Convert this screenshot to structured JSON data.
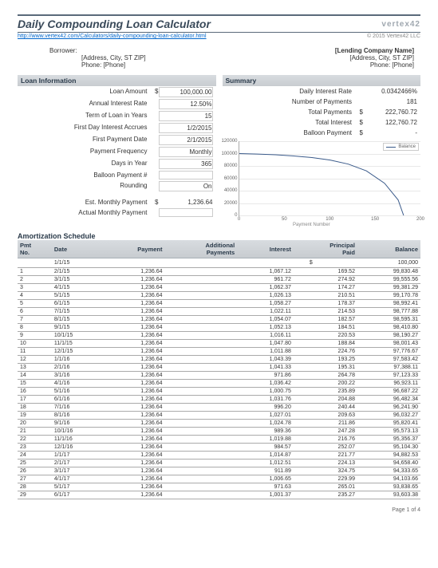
{
  "header": {
    "title": "Daily Compounding Loan Calculator",
    "logo": "vertex42",
    "url": "http://www.vertex42.com/Calculators/daily-compounding-loan-calculator.html",
    "copyright": "© 2015 Vertex42 LLC"
  },
  "party": {
    "borrower_label": "Borrower:",
    "borrower_addr": "[Address, City, ST  ZIP]",
    "borrower_phone": "Phone: [Phone]",
    "lender_name": "[Lending Company Name]",
    "lender_addr": "[Address, City, ST  ZIP]",
    "lender_phone": "Phone: [Phone]"
  },
  "loan": {
    "section": "Loan Information",
    "rows": [
      {
        "k": "Loan Amount",
        "c": "$",
        "v": "100,000.00",
        "boxed": true
      },
      {
        "k": "Annual Interest Rate",
        "c": "",
        "v": "12.50%",
        "boxed": true
      },
      {
        "k": "Term of Loan in Years",
        "c": "",
        "v": "15",
        "boxed": true
      },
      {
        "k": "First Day Interest Accrues",
        "c": "",
        "v": "1/2/2015",
        "boxed": true
      },
      {
        "k": "First Payment Date",
        "c": "",
        "v": "2/1/2015",
        "boxed": true
      },
      {
        "k": "Payment Frequency",
        "c": "",
        "v": "Monthly",
        "boxed": true
      },
      {
        "k": "Days in Year",
        "c": "",
        "v": "365",
        "boxed": true
      },
      {
        "k": "Balloon Payment #",
        "c": "",
        "v": "",
        "boxed": true
      },
      {
        "k": "Rounding",
        "c": "",
        "v": "On",
        "boxed": true
      }
    ],
    "est_label": "Est. Monthly Payment",
    "est_c": "$",
    "est_v": "1,236.64",
    "act_label": "Actual Monthly Payment",
    "act_v": ""
  },
  "summary": {
    "section": "Summary",
    "rows": [
      {
        "k": "Daily Interest Rate",
        "c": "",
        "v": "0.0342466%"
      },
      {
        "k": "Number of Payments",
        "c": "",
        "v": "181"
      },
      {
        "k": "Total Payments",
        "c": "$",
        "v": "222,760.72"
      },
      {
        "k": "Total Interest",
        "c": "$",
        "v": "122,760.72"
      },
      {
        "k": "Balloon Payment",
        "c": "$",
        "v": "-"
      }
    ]
  },
  "chart": {
    "legend": "Balance",
    "yticks": [
      {
        "v": 0,
        "l": "0"
      },
      {
        "v": 20000,
        "l": "20000"
      },
      {
        "v": 40000,
        "l": "40000"
      },
      {
        "v": 60000,
        "l": "60000"
      },
      {
        "v": 80000,
        "l": "80000"
      },
      {
        "v": 100000,
        "l": "100000"
      },
      {
        "v": 120000,
        "l": "120000"
      }
    ],
    "ymax": 120000,
    "xticks": [
      {
        "v": 0,
        "l": "0"
      },
      {
        "v": 50,
        "l": "50"
      },
      {
        "v": 100,
        "l": "100"
      },
      {
        "v": 150,
        "l": "150"
      },
      {
        "v": 200,
        "l": "200"
      }
    ],
    "xmax": 200,
    "xtitle": "Payment Number",
    "line_color": "#3a5a8a",
    "points": [
      [
        0,
        100000
      ],
      [
        20,
        99200
      ],
      [
        40,
        98000
      ],
      [
        60,
        96200
      ],
      [
        80,
        93500
      ],
      [
        100,
        89500
      ],
      [
        120,
        83000
      ],
      [
        140,
        72000
      ],
      [
        160,
        52000
      ],
      [
        175,
        25000
      ],
      [
        181,
        0
      ]
    ]
  },
  "amort": {
    "title": "Amortization Schedule",
    "cols": [
      "Pmt\nNo.",
      "Date",
      "Payment",
      "Additional\nPayments",
      "Interest",
      "Principal\nPaid",
      "Balance"
    ],
    "first": {
      "date": "1/1/15",
      "curr": "$",
      "balance": "100,000"
    },
    "rows": [
      [
        "1",
        "2/1/15",
        "1,236.64",
        "",
        "1,067.12",
        "169.52",
        "99,830.48"
      ],
      [
        "2",
        "3/1/15",
        "1,236.64",
        "",
        "961.72",
        "274.92",
        "99,555.56"
      ],
      [
        "3",
        "4/1/15",
        "1,236.64",
        "",
        "1,062.37",
        "174.27",
        "99,381.29"
      ],
      [
        "4",
        "5/1/15",
        "1,236.64",
        "",
        "1,026.13",
        "210.51",
        "99,170.78"
      ],
      [
        "5",
        "6/1/15",
        "1,236.64",
        "",
        "1,058.27",
        "178.37",
        "98,992.41"
      ],
      [
        "6",
        "7/1/15",
        "1,236.64",
        "",
        "1,022.11",
        "214.53",
        "98,777.88"
      ],
      [
        "7",
        "8/1/15",
        "1,236.64",
        "",
        "1,054.07",
        "182.57",
        "98,595.31"
      ],
      [
        "8",
        "9/1/15",
        "1,236.64",
        "",
        "1,052.13",
        "184.51",
        "98,410.80"
      ],
      [
        "9",
        "10/1/15",
        "1,236.64",
        "",
        "1,016.11",
        "220.53",
        "98,190.27"
      ],
      [
        "10",
        "11/1/15",
        "1,236.64",
        "",
        "1,047.80",
        "188.84",
        "98,001.43"
      ],
      [
        "11",
        "12/1/15",
        "1,236.64",
        "",
        "1,011.88",
        "224.76",
        "97,776.67"
      ],
      [
        "12",
        "1/1/16",
        "1,236.64",
        "",
        "1,043.39",
        "193.25",
        "97,583.42"
      ],
      [
        "13",
        "2/1/16",
        "1,236.64",
        "",
        "1,041.33",
        "195.31",
        "97,388.11"
      ],
      [
        "14",
        "3/1/16",
        "1,236.64",
        "",
        "971.86",
        "264.78",
        "97,123.33"
      ],
      [
        "15",
        "4/1/16",
        "1,236.64",
        "",
        "1,036.42",
        "200.22",
        "96,923.11"
      ],
      [
        "16",
        "5/1/16",
        "1,236.64",
        "",
        "1,000.75",
        "235.89",
        "96,687.22"
      ],
      [
        "17",
        "6/1/16",
        "1,236.64",
        "",
        "1,031.76",
        "204.88",
        "96,482.34"
      ],
      [
        "18",
        "7/1/16",
        "1,236.64",
        "",
        "996.20",
        "240.44",
        "96,241.90"
      ],
      [
        "19",
        "8/1/16",
        "1,236.64",
        "",
        "1,027.01",
        "209.63",
        "96,032.27"
      ],
      [
        "20",
        "9/1/16",
        "1,236.64",
        "",
        "1,024.78",
        "211.86",
        "95,820.41"
      ],
      [
        "21",
        "10/1/16",
        "1,236.64",
        "",
        "989.36",
        "247.28",
        "95,573.13"
      ],
      [
        "22",
        "11/1/16",
        "1,236.64",
        "",
        "1,019.88",
        "216.76",
        "95,356.37"
      ],
      [
        "23",
        "12/1/16",
        "1,236.64",
        "",
        "984.57",
        "252.07",
        "95,104.30"
      ],
      [
        "24",
        "1/1/17",
        "1,236.64",
        "",
        "1,014.87",
        "221.77",
        "94,882.53"
      ],
      [
        "25",
        "2/1/17",
        "1,236.64",
        "",
        "1,012.51",
        "224.13",
        "94,658.40"
      ],
      [
        "26",
        "3/1/17",
        "1,236.64",
        "",
        "911.89",
        "324.75",
        "94,333.65"
      ],
      [
        "27",
        "4/1/17",
        "1,236.64",
        "",
        "1,006.65",
        "229.99",
        "94,103.66"
      ],
      [
        "28",
        "5/1/17",
        "1,236.64",
        "",
        "971.63",
        "265.01",
        "93,838.65"
      ],
      [
        "29",
        "6/1/17",
        "1,236.64",
        "",
        "1,001.37",
        "235.27",
        "93,603.38"
      ]
    ]
  },
  "footer": "Page 1 of 4"
}
